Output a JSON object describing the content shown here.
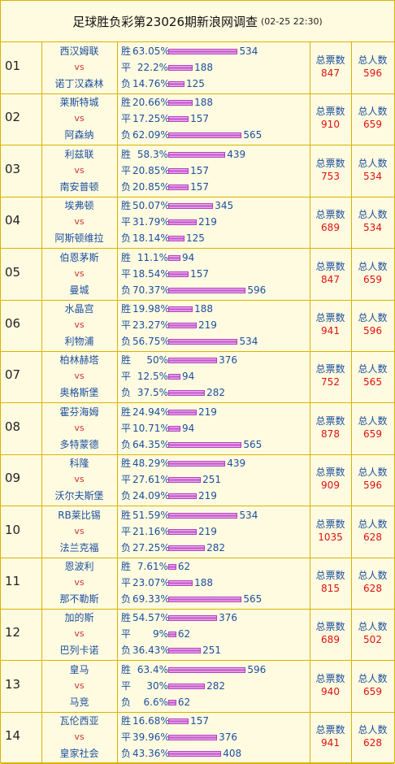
{
  "header": {
    "title": "足球胜负彩第23026期新浪网调查",
    "datetime": "(02-25 22:30)"
  },
  "labels": {
    "win": "胜",
    "draw": "平",
    "lose": "负",
    "vs": "vs",
    "total_votes": "总票数",
    "total_people": "总人数"
  },
  "chart_data": {
    "type": "bar",
    "matches": [
      {
        "no": "01",
        "home": "西汉姆联",
        "away": "诺丁汉森林",
        "options": [
          {
            "pct": "63.05%",
            "count": 534
          },
          {
            "pct": "22.2%",
            "count": 188
          },
          {
            "pct": "14.76%",
            "count": 125
          }
        ],
        "votes": "847",
        "people": "596"
      },
      {
        "no": "02",
        "home": "莱斯特城",
        "away": "阿森纳",
        "options": [
          {
            "pct": "20.66%",
            "count": 188
          },
          {
            "pct": "17.25%",
            "count": 157
          },
          {
            "pct": "62.09%",
            "count": 565
          }
        ],
        "votes": "910",
        "people": "659"
      },
      {
        "no": "03",
        "home": "利兹联",
        "away": "南安普顿",
        "options": [
          {
            "pct": "58.3%",
            "count": 439
          },
          {
            "pct": "20.85%",
            "count": 157
          },
          {
            "pct": "20.85%",
            "count": 157
          }
        ],
        "votes": "753",
        "people": "534"
      },
      {
        "no": "04",
        "home": "埃弗顿",
        "away": "阿斯顿维拉",
        "options": [
          {
            "pct": "50.07%",
            "count": 345
          },
          {
            "pct": "31.79%",
            "count": 219
          },
          {
            "pct": "18.14%",
            "count": 125
          }
        ],
        "votes": "689",
        "people": "534"
      },
      {
        "no": "05",
        "home": "伯恩茅斯",
        "away": "曼城",
        "options": [
          {
            "pct": "11.1%",
            "count": 94
          },
          {
            "pct": "18.54%",
            "count": 157
          },
          {
            "pct": "70.37%",
            "count": 596
          }
        ],
        "votes": "847",
        "people": "659"
      },
      {
        "no": "06",
        "home": "水晶宫",
        "away": "利物浦",
        "options": [
          {
            "pct": "19.98%",
            "count": 188
          },
          {
            "pct": "23.27%",
            "count": 219
          },
          {
            "pct": "56.75%",
            "count": 534
          }
        ],
        "votes": "941",
        "people": "596"
      },
      {
        "no": "07",
        "home": "柏林赫塔",
        "away": "奥格斯堡",
        "options": [
          {
            "pct": "50%",
            "count": 376
          },
          {
            "pct": "12.5%",
            "count": 94
          },
          {
            "pct": "37.5%",
            "count": 282
          }
        ],
        "votes": "752",
        "people": "565"
      },
      {
        "no": "08",
        "home": "霍芬海姆",
        "away": "多特蒙德",
        "options": [
          {
            "pct": "24.94%",
            "count": 219
          },
          {
            "pct": "10.71%",
            "count": 94
          },
          {
            "pct": "64.35%",
            "count": 565
          }
        ],
        "votes": "878",
        "people": "659"
      },
      {
        "no": "09",
        "home": "科隆",
        "away": "沃尔夫斯堡",
        "options": [
          {
            "pct": "48.29%",
            "count": 439
          },
          {
            "pct": "27.61%",
            "count": 251
          },
          {
            "pct": "24.09%",
            "count": 219
          }
        ],
        "votes": "909",
        "people": "596"
      },
      {
        "no": "10",
        "home": "RB莱比锡",
        "away": "法兰克福",
        "options": [
          {
            "pct": "51.59%",
            "count": 534
          },
          {
            "pct": "21.16%",
            "count": 219
          },
          {
            "pct": "27.25%",
            "count": 282
          }
        ],
        "votes": "1035",
        "people": "628"
      },
      {
        "no": "11",
        "home": "恩波利",
        "away": "那不勒斯",
        "options": [
          {
            "pct": "7.61%",
            "count": 62
          },
          {
            "pct": "23.07%",
            "count": 188
          },
          {
            "pct": "69.33%",
            "count": 565
          }
        ],
        "votes": "815",
        "people": "628"
      },
      {
        "no": "12",
        "home": "加的斯",
        "away": "巴列卡诺",
        "options": [
          {
            "pct": "54.57%",
            "count": 376
          },
          {
            "pct": "9%",
            "count": 62
          },
          {
            "pct": "36.43%",
            "count": 251
          }
        ],
        "votes": "689",
        "people": "502"
      },
      {
        "no": "13",
        "home": "皇马",
        "away": "马竞",
        "options": [
          {
            "pct": "63.4%",
            "count": 596
          },
          {
            "pct": "30%",
            "count": 282
          },
          {
            "pct": "6.6%",
            "count": 62
          }
        ],
        "votes": "940",
        "people": "659"
      },
      {
        "no": "14",
        "home": "瓦伦西亚",
        "away": "皇家社会",
        "options": [
          {
            "pct": "16.68%",
            "count": 157
          },
          {
            "pct": "39.96%",
            "count": 376
          },
          {
            "pct": "43.36%",
            "count": 408
          }
        ],
        "votes": "941",
        "people": "628"
      }
    ]
  }
}
